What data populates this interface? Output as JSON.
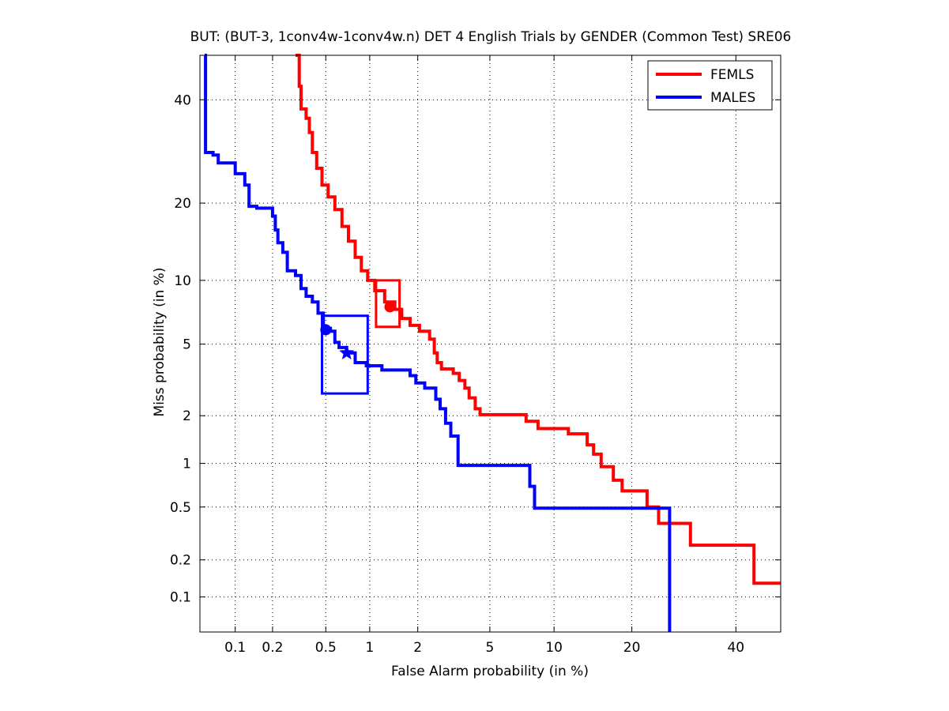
{
  "chart_data": {
    "type": "line",
    "title": "BUT: (BUT-3, 1conv4w-1conv4w.n) DET 4 English Trials by GENDER (Common Test) SRE06",
    "xlabel": "False Alarm probability (in %)",
    "ylabel": "Miss probability (in %)",
    "xscale": "probit",
    "yscale": "probit",
    "xlim": [
      0.05,
      50
    ],
    "ylim": [
      0.05,
      50
    ],
    "xticks": [
      0.1,
      0.2,
      0.5,
      1,
      2,
      5,
      10,
      20,
      40
    ],
    "xtick_labels": [
      "0.1",
      "0.2",
      "0.5",
      "1",
      "2",
      "5",
      "10",
      "20",
      "40"
    ],
    "yticks": [
      0.1,
      0.2,
      0.5,
      1,
      2,
      5,
      10,
      20,
      40
    ],
    "ytick_labels": [
      "0.1",
      "0.2",
      "0.5",
      "1",
      "2",
      "5",
      "10",
      "20",
      "40"
    ],
    "grid": true,
    "legend_position": "top-right",
    "colors": {
      "femls": "#ff0000",
      "males": "#0000ff"
    },
    "series": [
      {
        "name": "FEMLS",
        "color": "#ff0000",
        "points": [
          [
            0.3,
            50
          ],
          [
            0.32,
            43
          ],
          [
            0.33,
            38
          ],
          [
            0.36,
            36
          ],
          [
            0.38,
            33
          ],
          [
            0.4,
            29
          ],
          [
            0.43,
            26
          ],
          [
            0.47,
            23
          ],
          [
            0.52,
            21
          ],
          [
            0.58,
            19
          ],
          [
            0.65,
            16.5
          ],
          [
            0.72,
            14.5
          ],
          [
            0.8,
            12.5
          ],
          [
            0.88,
            11
          ],
          [
            0.97,
            10
          ],
          [
            1.08,
            9
          ],
          [
            1.25,
            8
          ],
          [
            1.45,
            7.4
          ],
          [
            1.6,
            6.7
          ],
          [
            1.8,
            6.2
          ],
          [
            2.05,
            5.8
          ],
          [
            2.35,
            5.3
          ],
          [
            2.5,
            4.5
          ],
          [
            2.6,
            4
          ],
          [
            2.75,
            3.7
          ],
          [
            3.2,
            3.5
          ],
          [
            3.45,
            3.2
          ],
          [
            3.7,
            2.9
          ],
          [
            3.9,
            2.55
          ],
          [
            4.2,
            2.2
          ],
          [
            4.45,
            2.03
          ],
          [
            7.2,
            2.03
          ],
          [
            7.5,
            1.85
          ],
          [
            8.5,
            1.67
          ],
          [
            11.5,
            1.55
          ],
          [
            13.7,
            1.32
          ],
          [
            14.5,
            1.15
          ],
          [
            15.5,
            0.95
          ],
          [
            17.2,
            0.77
          ],
          [
            18.5,
            0.65
          ],
          [
            22.5,
            0.5
          ],
          [
            24.5,
            0.38
          ],
          [
            30.5,
            0.26
          ],
          [
            44,
            0.13
          ],
          [
            50,
            0.13
          ]
        ]
      },
      {
        "name": "MALES",
        "color": "#0000ff",
        "points": [
          [
            0.055,
            50
          ],
          [
            0.056,
            29
          ],
          [
            0.065,
            28.5
          ],
          [
            0.072,
            27
          ],
          [
            0.1,
            25
          ],
          [
            0.12,
            23
          ],
          [
            0.13,
            19.5
          ],
          [
            0.15,
            19.2
          ],
          [
            0.2,
            18
          ],
          [
            0.21,
            16
          ],
          [
            0.22,
            14.3
          ],
          [
            0.24,
            13.1
          ],
          [
            0.26,
            11
          ],
          [
            0.3,
            10.5
          ],
          [
            0.33,
            9.2
          ],
          [
            0.36,
            8.5
          ],
          [
            0.4,
            8
          ],
          [
            0.44,
            7.1
          ],
          [
            0.48,
            6
          ],
          [
            0.54,
            5.8
          ],
          [
            0.58,
            5.1
          ],
          [
            0.62,
            4.8
          ],
          [
            0.7,
            4.5
          ],
          [
            0.8,
            4
          ],
          [
            0.95,
            3.85
          ],
          [
            1.2,
            3.65
          ],
          [
            1.8,
            3.4
          ],
          [
            1.95,
            3.1
          ],
          [
            2.2,
            2.9
          ],
          [
            2.55,
            2.5
          ],
          [
            2.7,
            2.2
          ],
          [
            2.9,
            1.8
          ],
          [
            3.1,
            1.5
          ],
          [
            3.4,
            0.97
          ],
          [
            7.5,
            0.97
          ],
          [
            7.8,
            0.7
          ],
          [
            8.2,
            0.49
          ],
          [
            24.5,
            0.49
          ],
          [
            26.5,
            0.25
          ],
          [
            26.5,
            0.04
          ]
        ]
      }
    ],
    "markers": [
      {
        "series": "FEMLS",
        "shape": "circle",
        "x": 1.35,
        "y": 7.6
      },
      {
        "series": "MALES",
        "shape": "circle",
        "x": 0.5,
        "y": 5.9
      },
      {
        "series": "MALES",
        "shape": "star",
        "x": 0.7,
        "y": 4.5
      }
    ],
    "confidence_boxes": [
      {
        "series": "FEMLS",
        "x_range": [
          1.1,
          1.55
        ],
        "y_range": [
          6.1,
          10
        ]
      },
      {
        "series": "MALES",
        "x_range": [
          0.47,
          0.97
        ],
        "y_range": [
          2.7,
          6.9
        ]
      }
    ]
  }
}
